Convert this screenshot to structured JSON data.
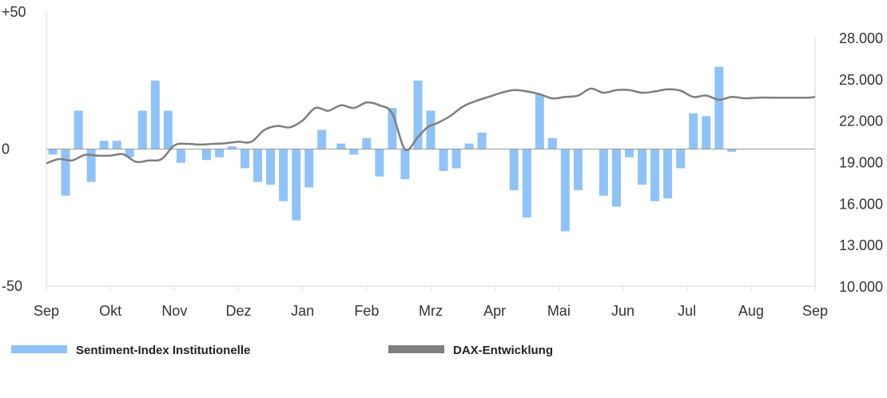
{
  "chart_data": {
    "type": "bar",
    "title": "",
    "xlabel": "",
    "categories": [
      "Sep",
      "Okt",
      "Nov",
      "Dez",
      "Jan",
      "Feb",
      "Mrz",
      "Apr",
      "Mai",
      "Jun",
      "Jul",
      "Aug",
      "Sep"
    ],
    "left_axis": {
      "ylim": [
        -50,
        50
      ],
      "labels": [
        {
          "value": 50,
          "text": "+50"
        },
        {
          "value": 0,
          "text": "0"
        },
        {
          "value": -50,
          "text": "-50"
        }
      ]
    },
    "right_axis": {
      "ylim": [
        10000,
        28000
      ],
      "labels": [
        {
          "value": 28000,
          "text": "28.000"
        },
        {
          "value": 25000,
          "text": "25.000"
        },
        {
          "value": 22000,
          "text": "22.000"
        },
        {
          "value": 19000,
          "text": "19.000"
        },
        {
          "value": 16000,
          "text": "16.000"
        },
        {
          "value": 13000,
          "text": "13.000"
        },
        {
          "value": 10000,
          "text": "10.000"
        }
      ]
    },
    "series": [
      {
        "name": "Sentiment-Index Institutionelle",
        "type": "bar",
        "axis": "left",
        "color": "#8fc3f7",
        "x": [
          0.1,
          0.3,
          0.5,
          0.7,
          0.9,
          1.1,
          1.3,
          1.5,
          1.7,
          1.9,
          2.1,
          2.5,
          2.7,
          2.9,
          3.1,
          3.3,
          3.5,
          3.7,
          3.9,
          4.1,
          4.3,
          4.6,
          4.8,
          5.0,
          5.2,
          5.4,
          5.6,
          5.8,
          6.0,
          6.2,
          6.4,
          6.6,
          6.8,
          7.3,
          7.5,
          7.7,
          7.9,
          8.1,
          8.3,
          8.7,
          8.9,
          9.1,
          9.3,
          9.5,
          9.7,
          9.9,
          10.1,
          10.3,
          10.5,
          10.7,
          10.9,
          11.1,
          11.3,
          11.6,
          11.8,
          12.0
        ],
        "values": [
          -2,
          -17,
          14,
          -12,
          3,
          3,
          -3,
          14,
          25,
          14,
          -5,
          -4,
          -3,
          1,
          -7,
          -12,
          -13,
          -19,
          -26,
          -14,
          7,
          2,
          -2,
          4,
          -10,
          15,
          -11,
          25,
          14,
          -8,
          -7,
          2,
          6,
          -15,
          -25,
          20,
          4,
          -30,
          -15,
          -17,
          -21,
          -3,
          -13,
          -19,
          -18,
          -7,
          13,
          12,
          30,
          -1,
          0,
          0,
          0,
          0,
          0,
          0
        ]
      },
      {
        "name": "DAX-Entwicklung",
        "type": "line",
        "axis": "right",
        "color": "#7f7f7f",
        "x": [
          0.0,
          0.2,
          0.4,
          0.6,
          0.8,
          1.0,
          1.2,
          1.4,
          1.6,
          1.8,
          2.0,
          2.2,
          2.4,
          2.6,
          2.8,
          3.0,
          3.2,
          3.4,
          3.6,
          3.8,
          4.0,
          4.2,
          4.4,
          4.6,
          4.8,
          5.0,
          5.2,
          5.4,
          5.6,
          5.8,
          5.95,
          6.1,
          6.3,
          6.5,
          6.7,
          6.9,
          7.1,
          7.3,
          7.5,
          7.7,
          7.9,
          8.1,
          8.3,
          8.5,
          8.7,
          8.9,
          9.1,
          9.3,
          9.5,
          9.7,
          9.9,
          10.1,
          10.3,
          10.5,
          10.7,
          10.9,
          11.1,
          11.3,
          11.5,
          11.7,
          11.9,
          12.0
        ],
        "values": [
          18900,
          19200,
          19100,
          19500,
          19450,
          19450,
          19550,
          19000,
          19100,
          19200,
          20200,
          20300,
          20250,
          20300,
          20350,
          20450,
          20450,
          21300,
          21600,
          21500,
          22000,
          22900,
          22700,
          23100,
          22900,
          23300,
          23100,
          22500,
          19900,
          20800,
          21500,
          21800,
          22300,
          23000,
          23400,
          23700,
          24000,
          24200,
          24100,
          23900,
          23600,
          23700,
          23800,
          24300,
          24000,
          24200,
          24200,
          24000,
          24100,
          24250,
          24150,
          23700,
          23800,
          23500,
          23700,
          23600,
          23650,
          23650,
          23650,
          23650,
          23650,
          23700
        ]
      }
    ],
    "legend": {
      "position": "bottom",
      "items": [
        {
          "label": "Sentiment-Index Institutionelle",
          "color": "#8fc3f7"
        },
        {
          "label": "DAX-Entwicklung",
          "color": "#7f7f7f"
        }
      ]
    }
  }
}
